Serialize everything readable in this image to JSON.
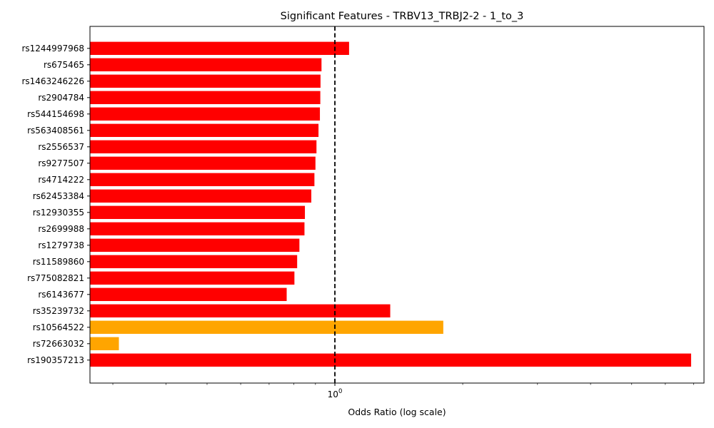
{
  "chart_data": {
    "type": "bar",
    "orientation": "horizontal",
    "title": "Significant Features - TRBV13_TRBJ2-2 - 1_to_3",
    "xlabel": "Odds Ratio (log scale)",
    "ylabel": "",
    "x_scale": "log",
    "xlim": [
      0.265,
      7.4
    ],
    "x_tick_labels": [
      "10^0"
    ],
    "reference_line": {
      "x": 1.0,
      "style": "dashed",
      "color": "#000000"
    },
    "grid": false,
    "legend": "none",
    "colors": {
      "red": "#ff0000",
      "orange": "#ffa500"
    },
    "categories": [
      "rs1244997968",
      "rs675465",
      "rs1463246226",
      "rs2904784",
      "rs544154698",
      "rs563408561",
      "rs2556537",
      "rs9277507",
      "rs4714222",
      "rs62453384",
      "rs12930355",
      "rs2699988",
      "rs1279738",
      "rs11589860",
      "rs775082821",
      "rs6143677",
      "rs35239732",
      "rs10564522",
      "rs72663032",
      "rs190357213"
    ],
    "values": [
      1.08,
      0.93,
      0.925,
      0.924,
      0.922,
      0.915,
      0.905,
      0.9,
      0.895,
      0.88,
      0.85,
      0.848,
      0.825,
      0.815,
      0.803,
      0.77,
      1.35,
      1.8,
      0.31,
      6.9
    ],
    "bar_colors": [
      "red",
      "red",
      "red",
      "red",
      "red",
      "red",
      "red",
      "red",
      "red",
      "red",
      "red",
      "red",
      "red",
      "red",
      "red",
      "red",
      "red",
      "orange",
      "orange",
      "red"
    ]
  }
}
